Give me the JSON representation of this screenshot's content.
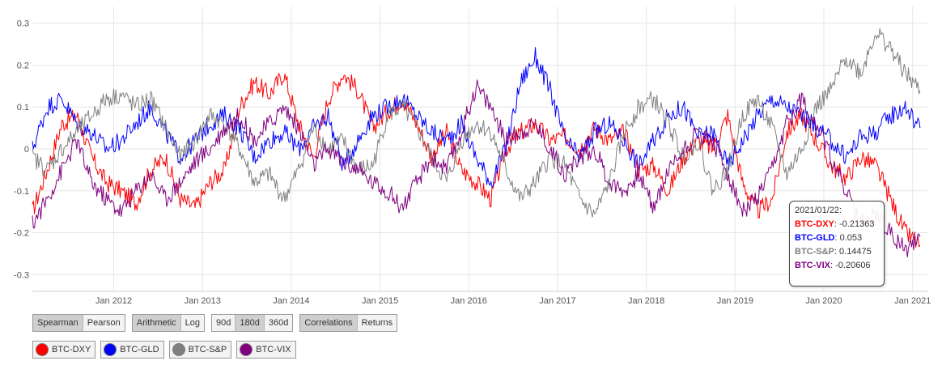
{
  "chart_data": {
    "type": "line",
    "ylim": [
      -0.34,
      0.34
    ],
    "y_ticks": [
      "0.3",
      "0.2",
      "0.1",
      "0",
      "-0.1",
      "-0.2",
      "-0.3"
    ],
    "x_tick_labels": [
      "Jan 2012",
      "Jan 2013",
      "Jan 2014",
      "Jan 2015",
      "Jan 2016",
      "Jan 2017",
      "Jan 2018",
      "Jan 2019",
      "Jan 2020",
      "Jan 2021"
    ],
    "x_range": [
      "2011-02",
      "2021-03"
    ],
    "grid": true,
    "series": [
      {
        "name": "BTC-DXY",
        "color": "#ff0000",
        "x": [
          "2011-02",
          "2011-04",
          "2011-06",
          "2011-08",
          "2011-10",
          "2011-12",
          "2012-02",
          "2012-04",
          "2012-06",
          "2012-08",
          "2012-10",
          "2012-12",
          "2013-02",
          "2013-04",
          "2013-06",
          "2013-08",
          "2013-10",
          "2013-12",
          "2014-02",
          "2014-04",
          "2014-06",
          "2014-08",
          "2014-10",
          "2014-12",
          "2015-02",
          "2015-04",
          "2015-06",
          "2015-08",
          "2015-10",
          "2015-12",
          "2016-02",
          "2016-04",
          "2016-06",
          "2016-08",
          "2016-10",
          "2016-12",
          "2017-02",
          "2017-04",
          "2017-06",
          "2017-08",
          "2017-10",
          "2017-12",
          "2018-02",
          "2018-04",
          "2018-06",
          "2018-08",
          "2018-10",
          "2018-12",
          "2019-02",
          "2019-04",
          "2019-06",
          "2019-08",
          "2019-10",
          "2019-12",
          "2020-02",
          "2020-04",
          "2020-06",
          "2020-08",
          "2020-10",
          "2020-12",
          "2021-02"
        ],
        "values": [
          -0.15,
          -0.05,
          0.06,
          0.08,
          -0.02,
          -0.08,
          -0.1,
          -0.13,
          -0.05,
          -0.02,
          -0.12,
          -0.14,
          -0.08,
          -0.05,
          0.1,
          0.16,
          0.13,
          0.18,
          0.06,
          -0.02,
          0.12,
          0.18,
          0.14,
          0.05,
          0.09,
          0.12,
          0.06,
          -0.02,
          0.04,
          -0.05,
          -0.08,
          -0.12,
          0.0,
          0.04,
          0.06,
          0.02,
          0.03,
          0.0,
          0.05,
          0.02,
          0.04,
          -0.05,
          -0.04,
          -0.1,
          -0.02,
          0.02,
          0.0,
          0.08,
          -0.08,
          -0.15,
          -0.12,
          0.04,
          0.08,
          0.02,
          -0.04,
          -0.07,
          -0.02,
          -0.04,
          -0.12,
          -0.2,
          -0.23
        ]
      },
      {
        "name": "BTC-GLD",
        "color": "#0000ff",
        "x": [
          "2011-02",
          "2011-04",
          "2011-06",
          "2011-08",
          "2011-10",
          "2011-12",
          "2012-02",
          "2012-04",
          "2012-06",
          "2012-08",
          "2012-10",
          "2012-12",
          "2013-02",
          "2013-04",
          "2013-06",
          "2013-08",
          "2013-10",
          "2013-12",
          "2014-02",
          "2014-04",
          "2014-06",
          "2014-08",
          "2014-10",
          "2014-12",
          "2015-02",
          "2015-04",
          "2015-06",
          "2015-08",
          "2015-10",
          "2015-12",
          "2016-02",
          "2016-04",
          "2016-06",
          "2016-08",
          "2016-10",
          "2016-12",
          "2017-02",
          "2017-04",
          "2017-06",
          "2017-08",
          "2017-10",
          "2017-12",
          "2018-02",
          "2018-04",
          "2018-06",
          "2018-08",
          "2018-10",
          "2018-12",
          "2019-02",
          "2019-04",
          "2019-06",
          "2019-08",
          "2019-10",
          "2019-12",
          "2020-02",
          "2020-04",
          "2020-06",
          "2020-08",
          "2020-10",
          "2020-12",
          "2021-02"
        ],
        "values": [
          0.0,
          0.1,
          0.12,
          0.06,
          0.04,
          0.0,
          0.02,
          0.06,
          0.1,
          0.04,
          -0.02,
          0.02,
          0.06,
          0.08,
          0.05,
          -0.02,
          0.02,
          0.04,
          0.0,
          0.05,
          0.08,
          -0.04,
          0.02,
          0.08,
          0.1,
          0.12,
          0.08,
          0.04,
          0.02,
          0.06,
          -0.02,
          -0.08,
          0.0,
          0.16,
          0.22,
          0.14,
          0.02,
          -0.02,
          0.04,
          0.06,
          0.02,
          -0.04,
          0.02,
          0.08,
          0.1,
          0.03,
          0.04,
          -0.04,
          0.02,
          0.08,
          0.12,
          0.1,
          0.08,
          0.05,
          0.02,
          -0.02,
          0.03,
          0.04,
          0.08,
          0.1,
          0.05
        ]
      },
      {
        "name": "BTC-S&P",
        "color": "#808080",
        "x": [
          "2011-02",
          "2011-04",
          "2011-06",
          "2011-08",
          "2011-10",
          "2011-12",
          "2012-02",
          "2012-04",
          "2012-06",
          "2012-08",
          "2012-10",
          "2012-12",
          "2013-02",
          "2013-04",
          "2013-06",
          "2013-08",
          "2013-10",
          "2013-12",
          "2014-02",
          "2014-04",
          "2014-06",
          "2014-08",
          "2014-10",
          "2014-12",
          "2015-02",
          "2015-04",
          "2015-06",
          "2015-08",
          "2015-10",
          "2015-12",
          "2016-02",
          "2016-04",
          "2016-06",
          "2016-08",
          "2016-10",
          "2016-12",
          "2017-02",
          "2017-04",
          "2017-06",
          "2017-08",
          "2017-10",
          "2017-12",
          "2018-02",
          "2018-04",
          "2018-06",
          "2018-08",
          "2018-10",
          "2018-12",
          "2019-02",
          "2019-04",
          "2019-06",
          "2019-08",
          "2019-10",
          "2019-12",
          "2020-02",
          "2020-04",
          "2020-06",
          "2020-08",
          "2020-10",
          "2020-12",
          "2021-02"
        ],
        "values": [
          -0.02,
          -0.05,
          0.0,
          0.04,
          0.08,
          0.12,
          0.13,
          0.1,
          0.12,
          0.05,
          -0.02,
          0.02,
          0.08,
          0.06,
          0.0,
          -0.08,
          -0.06,
          -0.12,
          -0.05,
          0.05,
          0.0,
          0.02,
          -0.05,
          -0.04,
          0.08,
          0.1,
          0.05,
          -0.02,
          -0.08,
          0.02,
          0.06,
          0.04,
          -0.05,
          -0.12,
          -0.08,
          -0.02,
          -0.04,
          -0.12,
          -0.16,
          -0.08,
          0.04,
          0.1,
          0.12,
          0.06,
          -0.02,
          0.02,
          -0.1,
          -0.05,
          0.08,
          0.12,
          0.05,
          -0.06,
          0.0,
          0.1,
          0.14,
          0.22,
          0.18,
          0.28,
          0.24,
          0.18,
          0.14
        ]
      },
      {
        "name": "BTC-VIX",
        "color": "#800080",
        "x": [
          "2011-02",
          "2011-04",
          "2011-06",
          "2011-08",
          "2011-10",
          "2011-12",
          "2012-02",
          "2012-04",
          "2012-06",
          "2012-08",
          "2012-10",
          "2012-12",
          "2013-02",
          "2013-04",
          "2013-06",
          "2013-08",
          "2013-10",
          "2013-12",
          "2014-02",
          "2014-04",
          "2014-06",
          "2014-08",
          "2014-10",
          "2014-12",
          "2015-02",
          "2015-04",
          "2015-06",
          "2015-08",
          "2015-10",
          "2015-12",
          "2016-02",
          "2016-04",
          "2016-06",
          "2016-08",
          "2016-10",
          "2016-12",
          "2017-02",
          "2017-04",
          "2017-06",
          "2017-08",
          "2017-10",
          "2017-12",
          "2018-02",
          "2018-04",
          "2018-06",
          "2018-08",
          "2018-10",
          "2018-12",
          "2019-02",
          "2019-04",
          "2019-06",
          "2019-08",
          "2019-10",
          "2019-12",
          "2020-02",
          "2020-04",
          "2020-06",
          "2020-08",
          "2020-10",
          "2020-12",
          "2021-02"
        ],
        "values": [
          -0.18,
          -0.12,
          -0.05,
          0.02,
          -0.08,
          -0.12,
          -0.15,
          -0.1,
          -0.06,
          -0.12,
          -0.08,
          -0.03,
          0.0,
          0.05,
          0.08,
          0.02,
          0.06,
          0.1,
          0.05,
          -0.04,
          0.0,
          -0.03,
          -0.05,
          -0.08,
          -0.1,
          -0.14,
          -0.08,
          -0.02,
          -0.05,
          0.04,
          0.15,
          0.1,
          0.02,
          0.04,
          0.06,
          0.0,
          -0.06,
          -0.02,
          0.0,
          -0.08,
          -0.1,
          -0.06,
          -0.14,
          -0.05,
          0.0,
          0.04,
          0.02,
          -0.06,
          -0.15,
          -0.12,
          -0.05,
          0.06,
          0.12,
          0.06,
          -0.02,
          -0.1,
          -0.18,
          -0.15,
          -0.2,
          -0.24,
          -0.21
        ]
      }
    ]
  },
  "controls": {
    "group1": {
      "spearman": "Spearman",
      "pearson": "Pearson"
    },
    "group2": {
      "arithmetic": "Arithmetic",
      "log": "Log"
    },
    "group3": {
      "d90": "90d",
      "d180": "180d",
      "d360": "360d"
    },
    "group4": {
      "correlations": "Correlations",
      "returns": "Returns"
    }
  },
  "legend": [
    {
      "label": "BTC-DXY",
      "color": "#ff0000"
    },
    {
      "label": "BTC-GLD",
      "color": "#0000ff"
    },
    {
      "label": "BTC-S&P",
      "color": "#808080"
    },
    {
      "label": "BTC-VIX",
      "color": "#800080"
    }
  ],
  "tooltip": {
    "date": "2021/01/22:",
    "rows": [
      {
        "key": "BTC-DXY",
        "value": "-0.21363",
        "color": "#ff0000"
      },
      {
        "key": "BTC-GLD",
        "value": "0.053",
        "color": "#0000ff"
      },
      {
        "key": "BTC-S&P",
        "value": "0.14475",
        "color": "#808080"
      },
      {
        "key": "BTC-VIX",
        "value": "-0.20606",
        "color": "#800080"
      }
    ]
  }
}
